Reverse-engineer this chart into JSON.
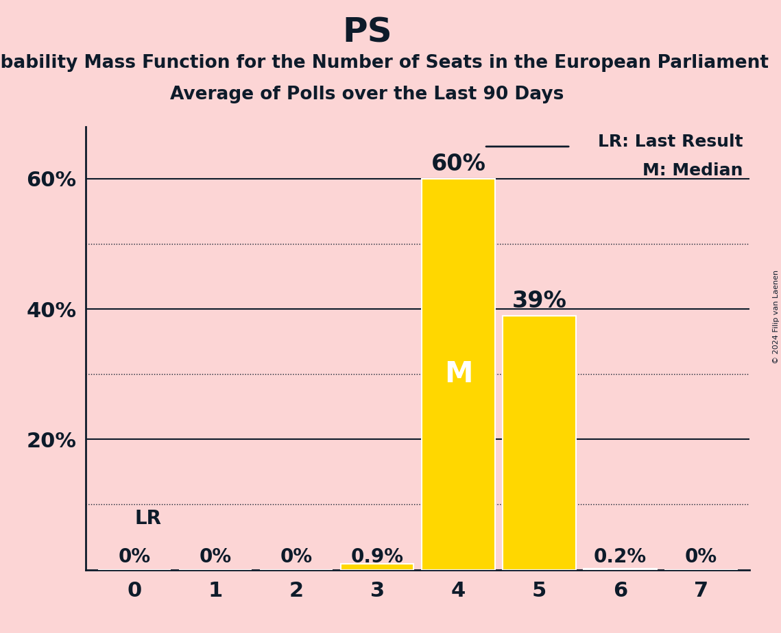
{
  "title": "PS",
  "subtitle1": "Probability Mass Function for the Number of Seats in the European Parliament",
  "subtitle2": "Average of Polls over the Last 90 Days",
  "background_color": "#fcd5d5",
  "bar_color": "#FFD700",
  "text_color": "#0d1b2a",
  "categories": [
    0,
    1,
    2,
    3,
    4,
    5,
    6,
    7
  ],
  "values": [
    0.0,
    0.0,
    0.0,
    0.009,
    0.6,
    0.39,
    0.002,
    0.0
  ],
  "bar_labels": [
    "0%",
    "0%",
    "0%",
    "0.9%",
    "60%",
    "39%",
    "0.2%",
    "0%"
  ],
  "median_seat": 4,
  "lr_seat": 0,
  "ylim": [
    0,
    0.68
  ],
  "solid_yticks": [
    0.2,
    0.4,
    0.6
  ],
  "solid_ytick_labels": [
    "20%",
    "40%",
    "60%"
  ],
  "dotted_yticks": [
    0.1,
    0.3,
    0.5
  ],
  "legend_lr": "LR: Last Result",
  "legend_m": "M: Median",
  "copyright": "© 2024 Filip van Laenen",
  "title_fontsize": 36,
  "subtitle_fontsize": 19,
  "label_fontsize": 20,
  "tick_fontsize": 22,
  "legend_fontsize": 18
}
